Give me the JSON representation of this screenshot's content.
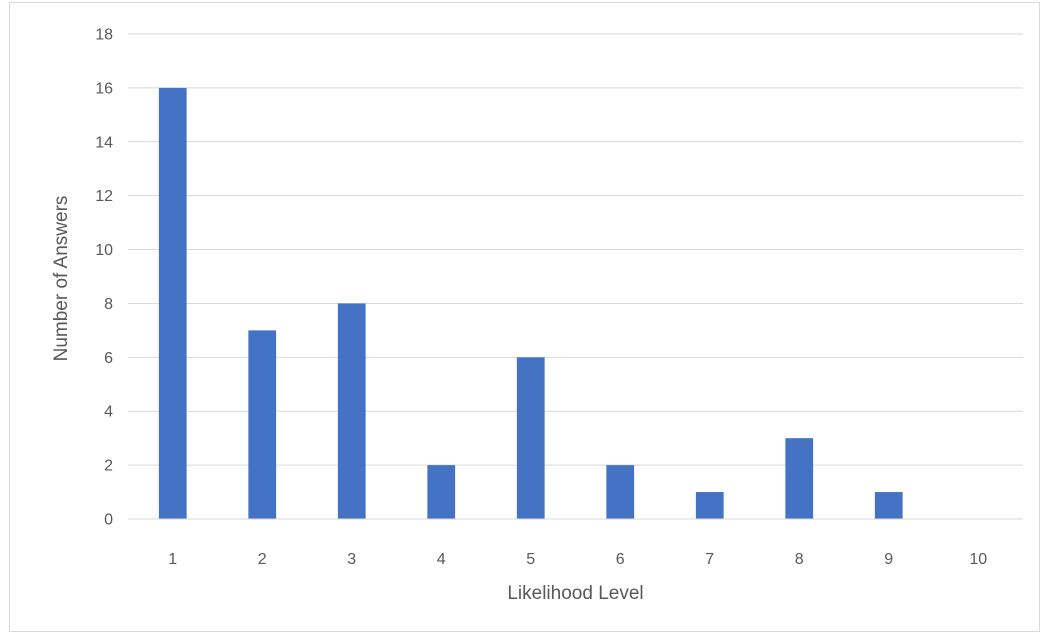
{
  "chart_data": {
    "type": "bar",
    "title": "",
    "xlabel": "Likelihood Level",
    "ylabel": "Number of Answers",
    "categories": [
      "1",
      "2",
      "3",
      "4",
      "5",
      "6",
      "7",
      "8",
      "9",
      "10"
    ],
    "values": [
      16,
      7,
      8,
      2,
      6,
      2,
      1,
      3,
      1,
      0
    ],
    "ylim": [
      0,
      18
    ],
    "yticks": [
      0,
      2,
      4,
      6,
      8,
      10,
      12,
      14,
      16,
      18
    ],
    "ytick_labels": [
      "0",
      "2",
      "4",
      "6",
      "8",
      "10",
      "12",
      "14",
      "16",
      "18"
    ],
    "grid": true,
    "legend": "none",
    "bar_color": "#4472c4",
    "grid_color": "#d9d9d9",
    "text_color": "#595959"
  }
}
